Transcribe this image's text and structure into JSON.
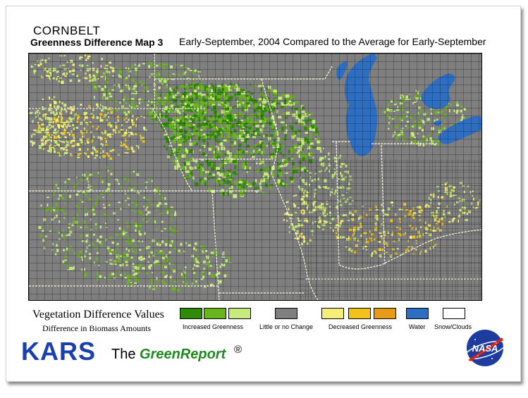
{
  "header": {
    "region": "CORNBELT",
    "map_title": "Greenness Difference Map 3",
    "subtitle": "Early-September, 2004 Compared to the Average for Early-September"
  },
  "legend": {
    "heading": "Vegetation Difference Values",
    "subheading": "Difference in Biomass Amounts",
    "categories": [
      {
        "label": "Increased Greenness",
        "colors": [
          "#2f8a06",
          "#69b51d",
          "#c6ea7e"
        ]
      },
      {
        "label": "Little or no Change",
        "colors": [
          "#7f7f7f"
        ]
      },
      {
        "label": "Decreased Greenness",
        "colors": [
          "#f7ee7a",
          "#f2c21a",
          "#e79a14"
        ]
      },
      {
        "label": "Water",
        "colors": [
          "#2e6ec2"
        ]
      },
      {
        "label": "Snow/Clouds",
        "colors": [
          "#ffffff"
        ]
      }
    ]
  },
  "footer": {
    "kars": "KARS",
    "the": "The",
    "greenreport": "GreenReport",
    "registered": "®",
    "logo_icon": "nasa-logo"
  },
  "colors": {
    "dark_green": "#2f8a06",
    "mid_green": "#69b51d",
    "light_green": "#c6ea7e",
    "gray": "#7f7f7f",
    "light_yellow": "#f7ee7a",
    "gold": "#f2c21a",
    "orange": "#e79a14",
    "water": "#2e6ec2",
    "county_lines": "#1a1a1a",
    "state_lines": "#fffbe0"
  }
}
